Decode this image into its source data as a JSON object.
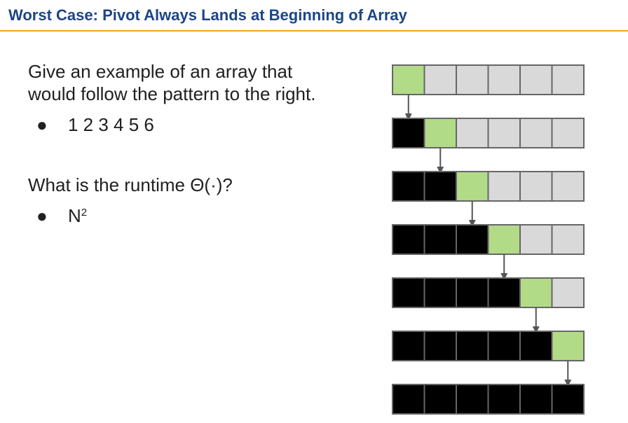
{
  "slide": {
    "title": "Worst Case: Pivot Always Lands at Beginning of Array"
  },
  "question1": {
    "line1": "Give an example of an array that",
    "line2": "would follow the pattern to the right.",
    "answer": "1 2 3 4 5 6"
  },
  "question2": {
    "text": "What is the runtime Θ(·)?",
    "answer_base": "N",
    "answer_exponent": "2"
  },
  "bullet_symbol": "●",
  "diagram": {
    "array_length": 6,
    "pivot_positions": [
      0,
      1,
      2,
      3,
      4,
      5,
      null
    ],
    "colors": {
      "sorted": "#000000",
      "pivot": "#b2db88",
      "unsorted": "#d9d9d9",
      "border": "#666666",
      "arrow": "#555555"
    }
  }
}
